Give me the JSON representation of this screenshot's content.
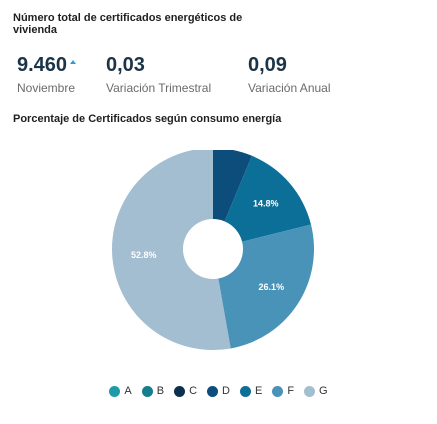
{
  "kpi_section": {
    "title": "Número total de certificados energéticos de vivienda",
    "items": [
      {
        "value": "9.460",
        "label": "Noviembre",
        "trend": "up"
      },
      {
        "value": "0,03",
        "label": "Variación Trimestral"
      },
      {
        "value": "0,09",
        "label": "Variación Anual"
      }
    ]
  },
  "chart_section": {
    "title": "Porcentaje de Certificados según consumo energía"
  },
  "chart_data": {
    "type": "pie",
    "title": "Porcentaje de Certificados según consumo energía",
    "donut": true,
    "categories": [
      "A",
      "B",
      "C",
      "D",
      "E",
      "F",
      "G"
    ],
    "values": [
      0.0,
      0.0,
      0.0,
      6.3,
      14.8,
      26.1,
      52.8
    ],
    "data_labels": [
      "",
      "",
      "",
      "",
      "14.8%",
      "26.1%",
      "52.8%"
    ],
    "colors": [
      "#1f9ba8",
      "#137e8d",
      "#0b2f4e",
      "#0d4d7c",
      "#0b6f98",
      "#4a93b8",
      "#a3bdd1"
    ],
    "legend_position": "bottom"
  }
}
